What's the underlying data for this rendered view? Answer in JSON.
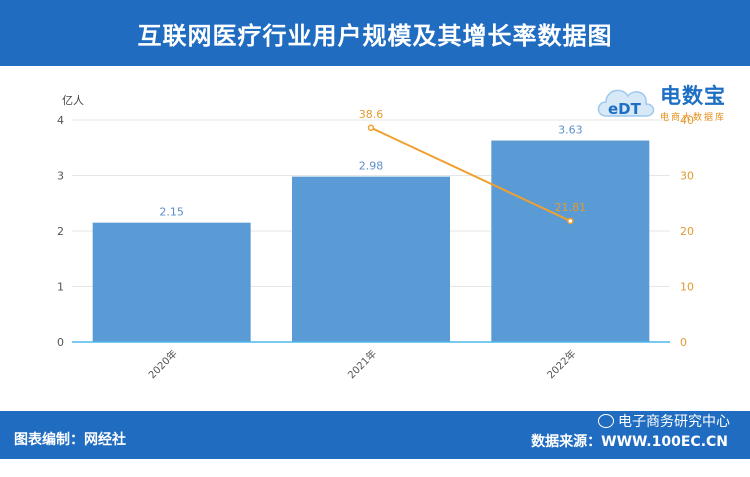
{
  "header": {
    "title": "互联网医疗行业用户规模及其增长率数据图"
  },
  "footer": {
    "left_text": "图表编制：网经社",
    "right_text": "数据来源：WWW.100EC.CN",
    "watermark_text": "电子商务研究中心"
  },
  "logo": {
    "main_text": "电数宝",
    "sub_text": "电商大数据库"
  },
  "colors": {
    "bar": "#5b9bd5",
    "line": "#f0a030",
    "header": "#1f6cc0"
  },
  "chart_data": {
    "type": "bar",
    "categories": [
      "2020年",
      "2021年",
      "2022年"
    ],
    "ylabel": "亿人",
    "ylim": [
      0,
      4
    ],
    "y_ticks": [
      0,
      1,
      2,
      3,
      4
    ],
    "y2lim": [
      0,
      40
    ],
    "y2_ticks": [
      0,
      10,
      20,
      30,
      40
    ],
    "grid": true,
    "series": [
      {
        "type": "bar",
        "axis": "left",
        "values": [
          2.15,
          2.98,
          3.63
        ],
        "labels": [
          "2.15",
          "2.98",
          "3.63"
        ]
      },
      {
        "type": "line",
        "axis": "right",
        "values": [
          null,
          38.6,
          21.81
        ],
        "labels": [
          "",
          "38.6",
          "21.81"
        ]
      }
    ]
  }
}
